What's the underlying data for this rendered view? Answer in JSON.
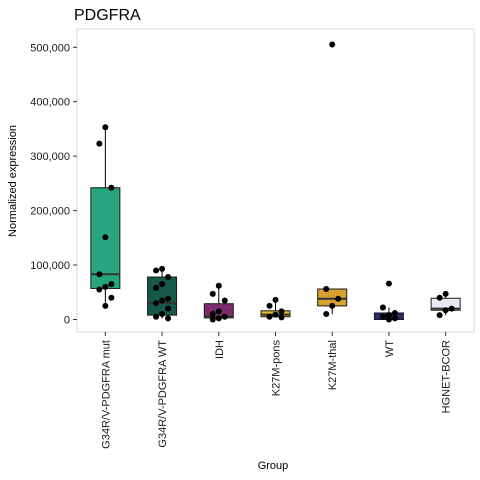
{
  "chart_data": {
    "type": "box",
    "title": "PDGFRA",
    "xlabel": "Group",
    "ylabel": "Normalized expression",
    "ylim": [
      -20000,
      530000
    ],
    "yticks": [
      0,
      100000,
      200000,
      300000,
      400000,
      500000
    ],
    "ytick_labels": [
      "0",
      "100,000",
      "200,000",
      "300,000",
      "400,000",
      "500,000"
    ],
    "grid": false,
    "legend": "none",
    "categories": [
      "G34R/V-PDGFRA mut",
      "G34R/V-PDGFRA WT",
      "IDH",
      "K27M-pons",
      "K27M-thal",
      "WT",
      "HGNET-BCOR"
    ],
    "colors": [
      "#27a57e",
      "#175948",
      "#7b2d6b",
      "#e3b52a",
      "#d6a12e",
      "#22228c",
      "#eaeaf6"
    ],
    "boxes": [
      {
        "q1": 57000,
        "median": 83000,
        "q3": 242000,
        "whisker_low": 25000,
        "whisker_high": 353000
      },
      {
        "q1": 8000,
        "median": 30000,
        "q3": 78000,
        "whisker_low": 2000,
        "whisker_high": 93000
      },
      {
        "q1": 3000,
        "median": 5000,
        "q3": 29000,
        "whisker_low": 0,
        "whisker_high": 62000
      },
      {
        "q1": 5000,
        "median": 9000,
        "q3": 16000,
        "whisker_low": 4000,
        "whisker_high": 36000
      },
      {
        "q1": 25000,
        "median": 38000,
        "q3": 56000,
        "whisker_low": 10000,
        "whisker_high": 56000
      },
      {
        "q1": 0,
        "median": 6000,
        "q3": 12000,
        "whisker_low": 0,
        "whisker_high": 22000
      },
      {
        "q1": 17000,
        "median": 20000,
        "q3": 39000,
        "whisker_low": 8000,
        "whisker_high": 47000
      }
    ],
    "points": [
      [
        353000,
        323000,
        242000,
        151000,
        83000,
        65000,
        60000,
        55000,
        40000,
        25000
      ],
      [
        93000,
        90000,
        78000,
        65000,
        58000,
        38000,
        35000,
        30000,
        20000,
        10000,
        5000,
        2000
      ],
      [
        62000,
        47000,
        35000,
        15000,
        10000,
        5000,
        2000,
        0
      ],
      [
        36000,
        25000,
        15000,
        9000,
        5000,
        4000
      ],
      [
        505000,
        56000,
        38000,
        25000,
        10000
      ],
      [
        66000,
        22000,
        12000,
        8000,
        5000,
        2000,
        0
      ],
      [
        47000,
        40000,
        20000,
        17000,
        8000
      ]
    ]
  }
}
